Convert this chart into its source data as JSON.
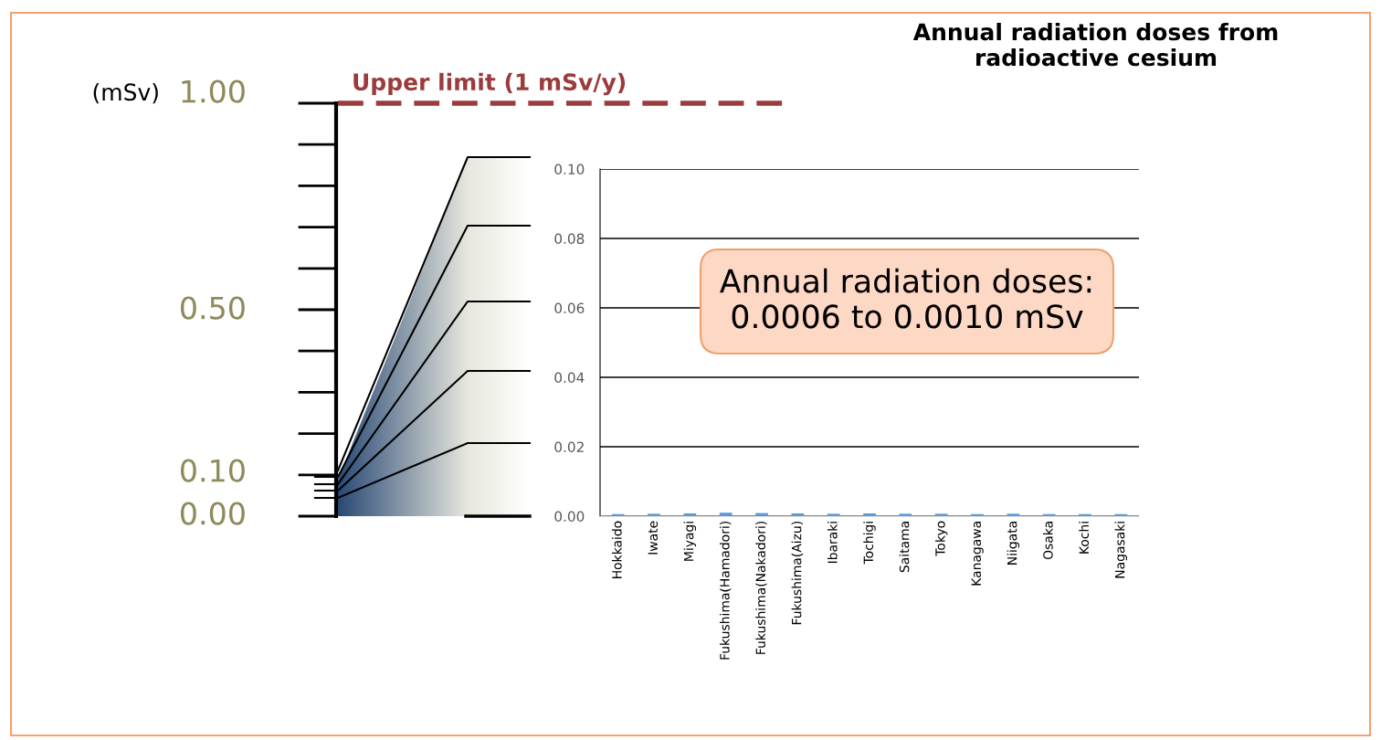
{
  "chart_data": [
    {
      "type": "other",
      "annotations": [
        "(mSv)",
        "1.00",
        "0.50",
        "0.10",
        "0.00",
        "Upper limit (1 mSv/y)"
      ]
    },
    {
      "type": "bar",
      "title": "Annual radiation doses from\nradioactive cesium",
      "categories": [
        "Hokkaido",
        "Iwate",
        "Miyagi",
        "Fukushima(Hamadori)",
        "Fukushima(Nakadori)",
        "Fukushima(Aizu)",
        "Ibaraki",
        "Tochigi",
        "Saitama",
        "Tokyo",
        "Kanagawa",
        "Niigata",
        "Osaka",
        "Kochi",
        "Nagasaki"
      ],
      "values": [
        0.0006,
        0.0007,
        0.0008,
        0.001,
        0.0009,
        0.0008,
        0.0007,
        0.0008,
        0.0007,
        0.0007,
        0.0006,
        0.0007,
        0.0006,
        0.0006,
        0.0006
      ],
      "color": "#5b9bd5",
      "ylim": [
        0,
        0.1
      ],
      "yticks": [
        {
          "value": 0,
          "label": "0.00"
        },
        {
          "value": 0.02,
          "label": "0.02"
        },
        {
          "value": 0.04,
          "label": "0.04"
        },
        {
          "value": 0.06,
          "label": "0.06"
        },
        {
          "value": 0.08,
          "label": "0.08"
        },
        {
          "value": 0.1,
          "label": "0.10"
        }
      ],
      "grid": "y",
      "annotations": [
        "Annual radiation doses:\n0.0006 to 0.0010 mSv"
      ]
    }
  ]
}
